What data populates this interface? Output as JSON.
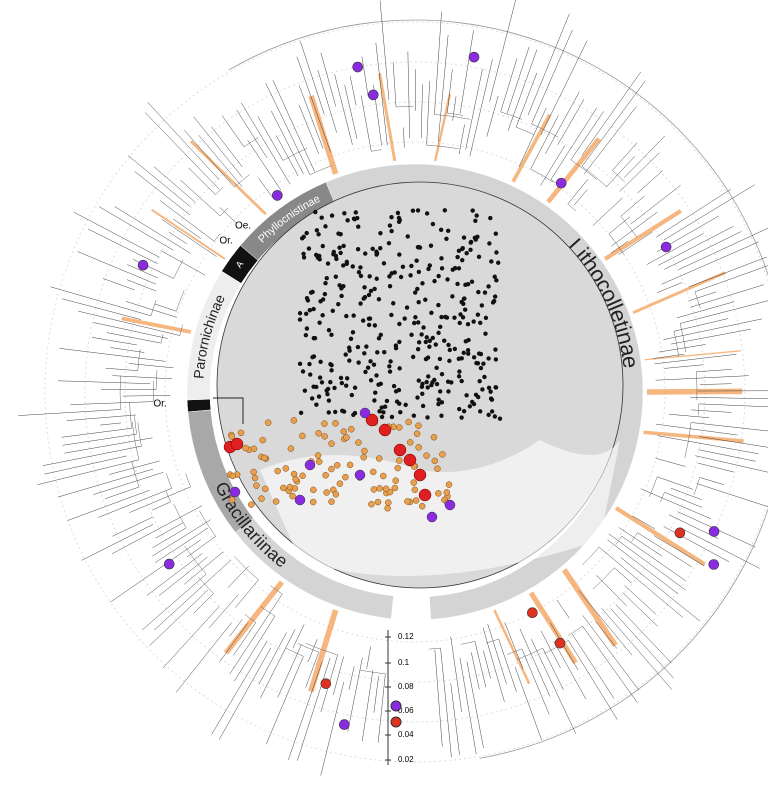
{
  "clades": [
    {
      "label": "Lithocolletinae"
    },
    {
      "label": "Gracillariinae"
    },
    {
      "label": "Parornichinae"
    },
    {
      "label": "Phyllocnistinae"
    },
    {
      "label": "A"
    }
  ],
  "small_labels": [
    "Oe.",
    "Or.",
    "Or."
  ],
  "scale": {
    "ticks": [
      "0.12",
      "0.1",
      "0.08",
      "0.06",
      "0.04",
      "0.02"
    ]
  }
}
